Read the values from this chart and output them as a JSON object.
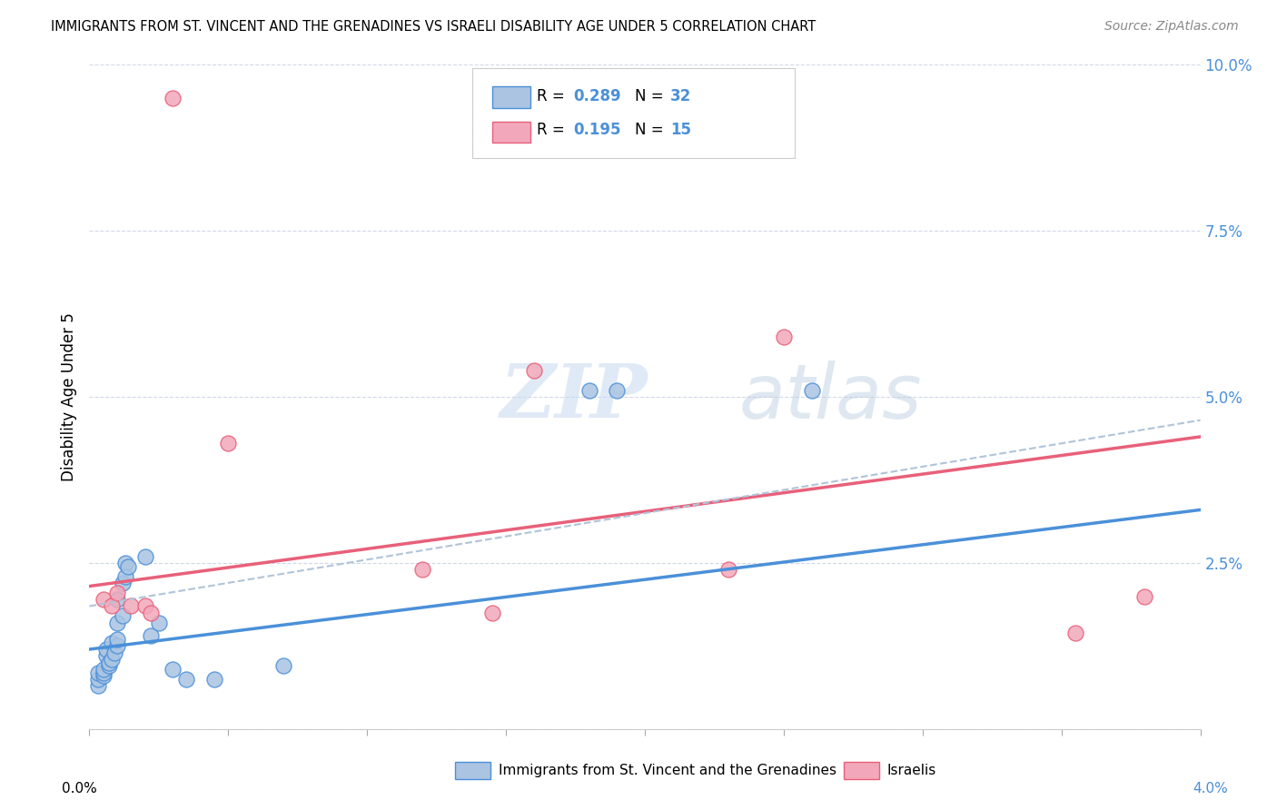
{
  "title": "IMMIGRANTS FROM ST. VINCENT AND THE GRENADINES VS ISRAELI DISABILITY AGE UNDER 5 CORRELATION CHART",
  "source": "Source: ZipAtlas.com",
  "ylabel": "Disability Age Under 5",
  "legend_label1": "Immigrants from St. Vincent and the Grenadines",
  "legend_label2": "Israelis",
  "xlim": [
    0.0,
    0.04
  ],
  "ylim": [
    0.0,
    0.1
  ],
  "yticks": [
    0.0,
    0.025,
    0.05,
    0.075,
    0.1
  ],
  "ytick_labels": [
    "",
    "2.5%",
    "5.0%",
    "7.5%",
    "10.0%"
  ],
  "color_blue": "#aac4e2",
  "color_pink": "#f2a8ba",
  "color_blue_line": "#4a90d9",
  "color_pink_line": "#e8607a",
  "color_dashed_line": "#b0c4d8",
  "watermark_zip": "ZIP",
  "watermark_atlas": "atlas",
  "blue_points": [
    [
      0.0003,
      0.0065
    ],
    [
      0.0003,
      0.0075
    ],
    [
      0.0003,
      0.0085
    ],
    [
      0.0005,
      0.008
    ],
    [
      0.0005,
      0.0085
    ],
    [
      0.0005,
      0.009
    ],
    [
      0.0006,
      0.011
    ],
    [
      0.0006,
      0.012
    ],
    [
      0.0007,
      0.0095
    ],
    [
      0.0007,
      0.01
    ],
    [
      0.0008,
      0.0105
    ],
    [
      0.0008,
      0.013
    ],
    [
      0.0009,
      0.0115
    ],
    [
      0.001,
      0.0125
    ],
    [
      0.001,
      0.0135
    ],
    [
      0.001,
      0.016
    ],
    [
      0.001,
      0.0195
    ],
    [
      0.0012,
      0.017
    ],
    [
      0.0012,
      0.022
    ],
    [
      0.0013,
      0.025
    ],
    [
      0.0013,
      0.023
    ],
    [
      0.0014,
      0.0245
    ],
    [
      0.002,
      0.026
    ],
    [
      0.0022,
      0.014
    ],
    [
      0.0025,
      0.016
    ],
    [
      0.003,
      0.009
    ],
    [
      0.0035,
      0.0075
    ],
    [
      0.0045,
      0.0075
    ],
    [
      0.007,
      0.0095
    ],
    [
      0.018,
      0.051
    ],
    [
      0.019,
      0.051
    ],
    [
      0.026,
      0.051
    ]
  ],
  "pink_points": [
    [
      0.003,
      0.095
    ],
    [
      0.0005,
      0.0195
    ],
    [
      0.0008,
      0.0185
    ],
    [
      0.001,
      0.0205
    ],
    [
      0.0015,
      0.0185
    ],
    [
      0.002,
      0.0185
    ],
    [
      0.0022,
      0.0175
    ],
    [
      0.005,
      0.043
    ],
    [
      0.012,
      0.024
    ],
    [
      0.0145,
      0.0175
    ],
    [
      0.016,
      0.054
    ],
    [
      0.023,
      0.024
    ],
    [
      0.025,
      0.059
    ],
    [
      0.0355,
      0.0145
    ],
    [
      0.038,
      0.02
    ]
  ],
  "blue_line_x": [
    0.0,
    0.04
  ],
  "blue_line_y": [
    0.012,
    0.033
  ],
  "pink_line_x": [
    0.0,
    0.04
  ],
  "pink_line_y": [
    0.0215,
    0.044
  ],
  "dashed_line_x": [
    0.0,
    0.04
  ],
  "dashed_line_y": [
    0.0185,
    0.0465
  ]
}
